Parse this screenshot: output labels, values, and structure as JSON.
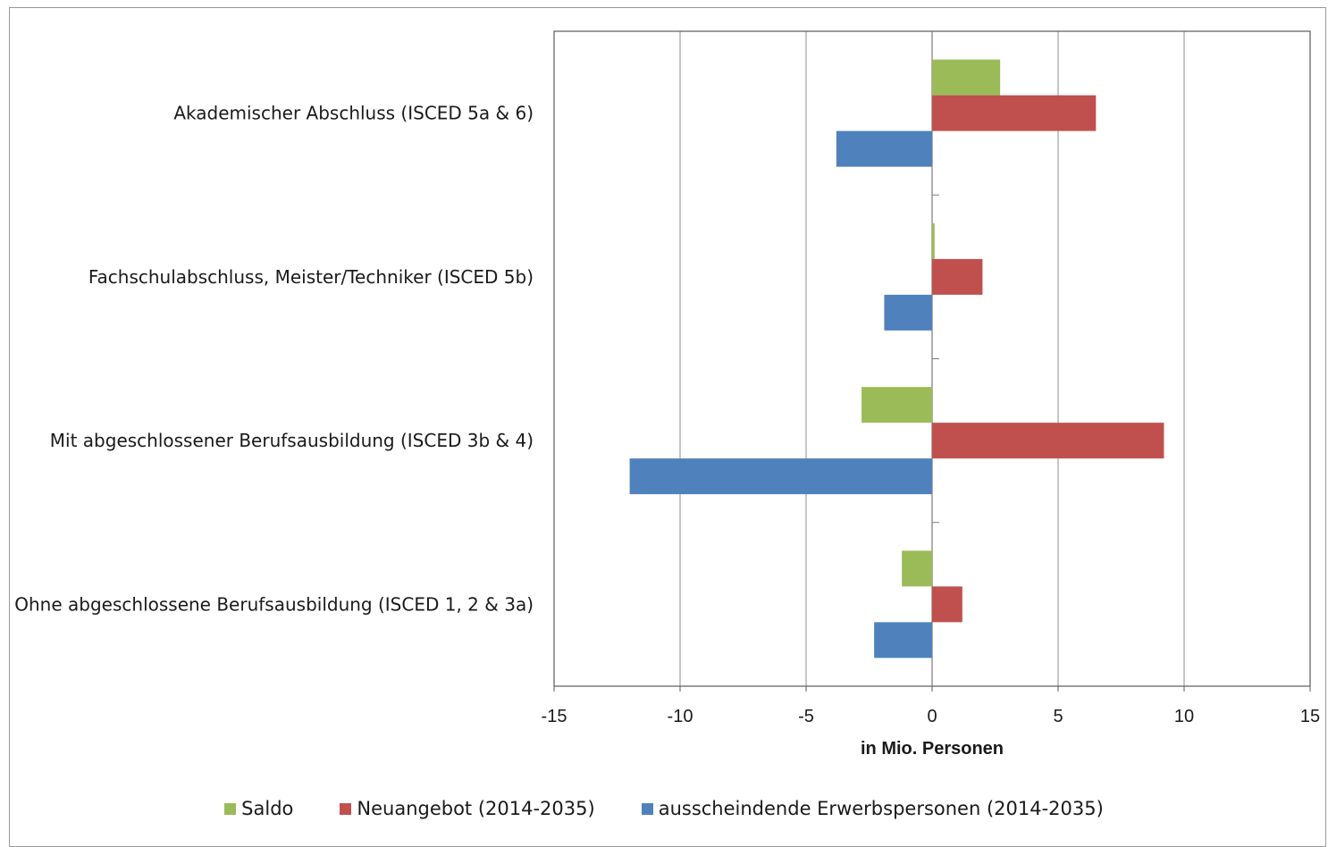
{
  "chart_data": {
    "type": "bar",
    "orientation": "horizontal",
    "categories": [
      "Akademischer Abschluss  (ISCED 5a & 6)",
      "Fachschulabschluss, Meister/Techniker (ISCED 5b)",
      "Mit abgeschlossener Berufsausbildung (ISCED 3b & 4)",
      "Ohne abgeschlossene Berufsausbildung (ISCED 1, 2 & 3a)"
    ],
    "series": [
      {
        "name": "Saldo",
        "color": "#9bbb59",
        "values": [
          2.7,
          0.1,
          -2.8,
          -1.2
        ]
      },
      {
        "name": "Neuangebot (2014-2035)",
        "color": "#c0504d",
        "values": [
          6.5,
          2.0,
          9.2,
          1.2
        ]
      },
      {
        "name": "ausscheindende Erwerbspersonen (2014-2035)",
        "color": "#4f81bd",
        "values": [
          -3.8,
          -1.9,
          -12.0,
          -2.3
        ]
      }
    ],
    "xlim": [
      -15,
      15
    ],
    "xticks": [
      -15,
      -10,
      -5,
      0,
      5,
      10,
      15
    ],
    "xlabel": "in Mio. Personen",
    "ylabel": "",
    "title": "",
    "grid": "vertical",
    "legend_position": "bottom"
  }
}
